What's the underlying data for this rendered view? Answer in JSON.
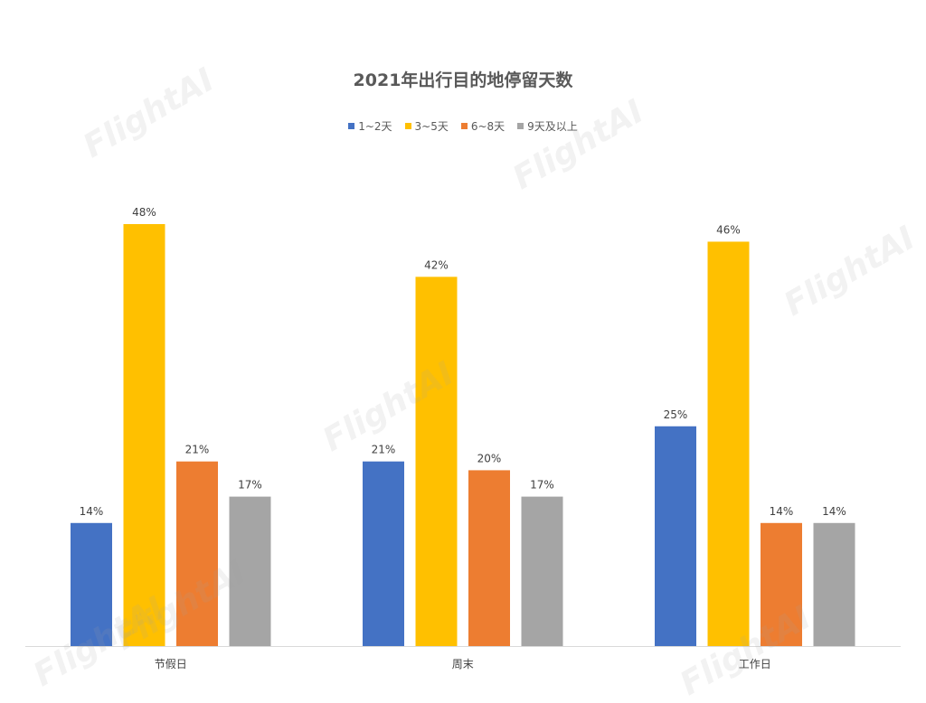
{
  "chart_data": {
    "type": "bar",
    "title": "2021年出行目的地停留天数",
    "categories": [
      "节假日",
      "周末",
      "工作日"
    ],
    "series": [
      {
        "name": "1~2天",
        "color": "#4472C4",
        "values": [
          14,
          21,
          25
        ]
      },
      {
        "name": "3~5天",
        "color": "#FFC000",
        "values": [
          48,
          42,
          46
        ]
      },
      {
        "name": "6~8天",
        "color": "#ED7D31",
        "values": [
          21,
          20,
          14
        ]
      },
      {
        "name": "9天及以上",
        "color": "#A5A5A5",
        "values": [
          17,
          17,
          14
        ]
      }
    ],
    "value_suffix": "%",
    "ylim": [
      0,
      48
    ],
    "grid": false,
    "legend": "top-center",
    "data_labels": true
  },
  "watermark": {
    "text": "FlightAI"
  }
}
